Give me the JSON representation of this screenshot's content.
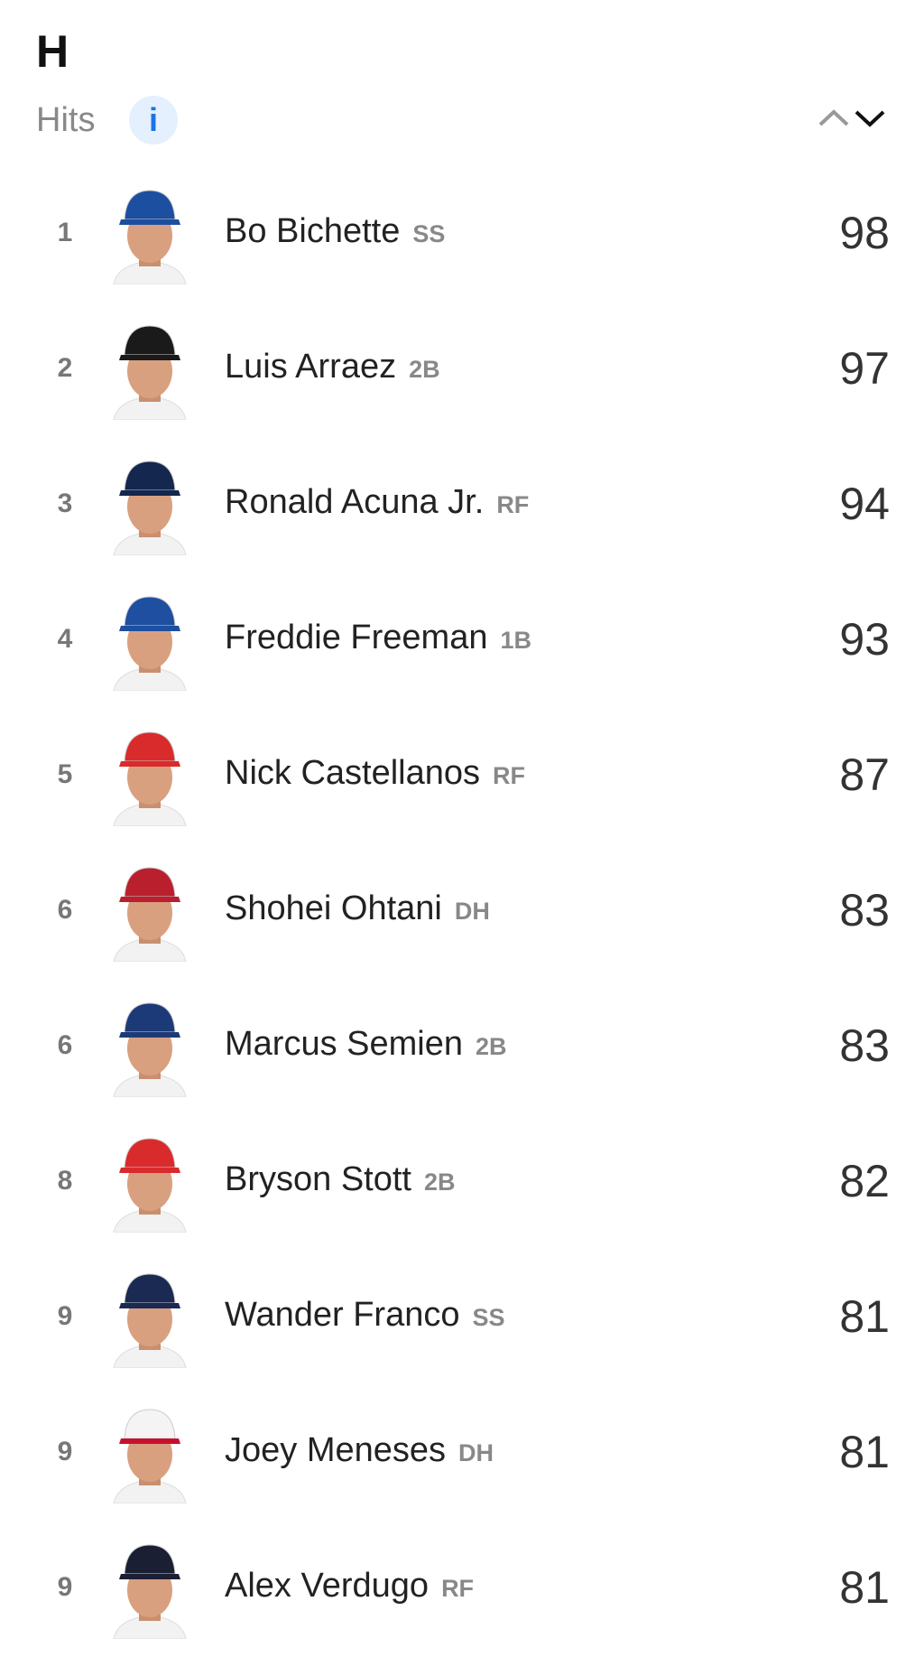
{
  "header": {
    "title": "H",
    "subtitle": "Hits",
    "info_icon": "info-icon",
    "sort_icons": [
      "chevron-up-icon",
      "chevron-down-icon"
    ]
  },
  "players": [
    {
      "rank": "1",
      "name": "Bo Bichette",
      "position": "SS",
      "value": "98",
      "cap_color": "#1d4fa0"
    },
    {
      "rank": "2",
      "name": "Luis Arraez",
      "position": "2B",
      "value": "97",
      "cap_color": "#1a1a1a"
    },
    {
      "rank": "3",
      "name": "Ronald Acuna Jr.",
      "position": "RF",
      "value": "94",
      "cap_color": "#13274f"
    },
    {
      "rank": "4",
      "name": "Freddie Freeman",
      "position": "1B",
      "value": "93",
      "cap_color": "#1e4fa0"
    },
    {
      "rank": "5",
      "name": "Nick Castellanos",
      "position": "RF",
      "value": "87",
      "cap_color": "#d92b2b"
    },
    {
      "rank": "6",
      "name": "Shohei Ohtani",
      "position": "DH",
      "value": "83",
      "cap_color": "#ba1f2e"
    },
    {
      "rank": "6",
      "name": "Marcus Semien",
      "position": "2B",
      "value": "83",
      "cap_color": "#1d3a78"
    },
    {
      "rank": "8",
      "name": "Bryson Stott",
      "position": "2B",
      "value": "82",
      "cap_color": "#d92b2b"
    },
    {
      "rank": "9",
      "name": "Wander Franco",
      "position": "SS",
      "value": "81",
      "cap_color": "#1a2a52"
    },
    {
      "rank": "9",
      "name": "Joey Meneses",
      "position": "DH",
      "value": "81",
      "cap_color": "#f4f4f4"
    },
    {
      "rank": "9",
      "name": "Alex Verdugo",
      "position": "RF",
      "value": "81",
      "cap_color": "#1a1f33"
    }
  ]
}
